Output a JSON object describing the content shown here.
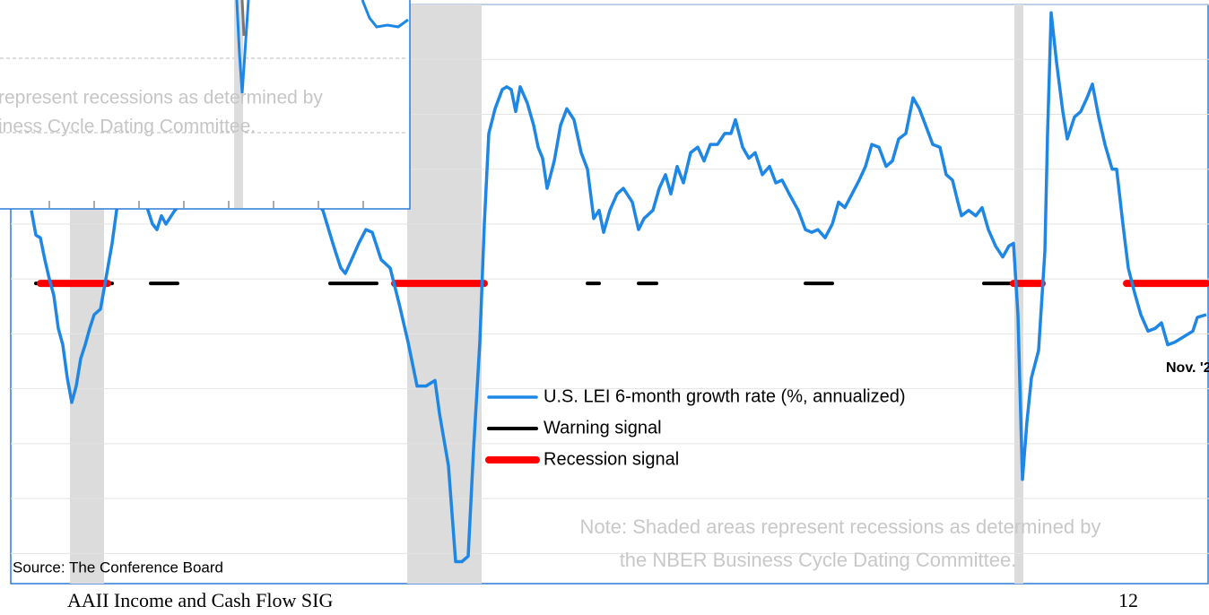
{
  "chart_data": {
    "type": "line",
    "xlim": [
      0,
      1336
    ],
    "ylim": [
      -11.1,
      10
    ],
    "yticks": [
      -10,
      -8,
      -6,
      -4,
      -2,
      0,
      2,
      4,
      6,
      8,
      10
    ],
    "grid": true,
    "series": [
      {
        "name": "U.S. LEI 6-month growth rate (%, annualized)",
        "color": "#1e87e5",
        "x": [
          23,
          28,
          33,
          38,
          43,
          48,
          53,
          58,
          63,
          68,
          73,
          78,
          83,
          88,
          93,
          100,
          106,
          113,
          118,
          136,
          153,
          158,
          163,
          168,
          173,
          183,
          268,
          348,
          360,
          368,
          373,
          380,
          388,
          396,
          403,
          413,
          423,
          433,
          443,
          453,
          463,
          473,
          478,
          488,
          496,
          503,
          510,
          516,
          523,
          528,
          533,
          540,
          548,
          553,
          558,
          563,
          568,
          576,
          583,
          588,
          593,
          598,
          606,
          613,
          620,
          628,
          636,
          643,
          650,
          656,
          661,
          668,
          676,
          683,
          693,
          700,
          706,
          716,
          723,
          730,
          736,
          743,
          750,
          758,
          766,
          773,
          780,
          788,
          796,
          803,
          808,
          816,
          823,
          830,
          838,
          846,
          853,
          860,
          868,
          878,
          886,
          893,
          900,
          908,
          916,
          923,
          930,
          938,
          946,
          953,
          960,
          968,
          976,
          983,
          990,
          998,
          1006,
          1013,
          1020,
          1028,
          1036,
          1043,
          1050,
          1056,
          1060,
          1068,
          1076,
          1083,
          1090,
          1098,
          1106,
          1113,
          1118,
          1123,
          1128,
          1133,
          1138,
          1146,
          1153,
          1156,
          1160,
          1166,
          1173,
          1178,
          1186,
          1193,
          1200,
          1206,
          1213,
          1220,
          1228,
          1233,
          1240,
          1246,
          1253,
          1260,
          1268,
          1276,
          1283,
          1290,
          1298,
          1308,
          1318,
          1323,
          1333
        ],
        "values": [
          2.5,
          1.6,
          1.5,
          0.7,
          0.0,
          -0.6,
          -1.8,
          -2.4,
          -3.6,
          -4.5,
          -3.9,
          -2.9,
          -2.4,
          -1.8,
          -1.3,
          -1.1,
          0.0,
          1.3,
          2.5,
          4.3,
          2.5,
          2.0,
          1.8,
          2.3,
          2.0,
          2.5,
          5.3,
          2.5,
          1.2,
          0.4,
          0.2,
          0.7,
          1.3,
          1.8,
          1.7,
          0.7,
          0.4,
          -0.9,
          -2.3,
          -3.9,
          -3.9,
          -3.7,
          -4.9,
          -6.8,
          -10.3,
          -10.3,
          -10.1,
          -6.2,
          -2.3,
          2.0,
          5.3,
          6.2,
          6.9,
          7.0,
          6.9,
          6.1,
          7.0,
          6.4,
          5.6,
          4.8,
          4.4,
          3.3,
          4.3,
          5.6,
          6.2,
          5.8,
          4.6,
          4.0,
          2.2,
          2.5,
          1.7,
          2.5,
          3.1,
          3.3,
          2.8,
          1.8,
          2.2,
          2.5,
          3.3,
          3.8,
          3.1,
          4.1,
          3.5,
          4.6,
          4.8,
          4.3,
          4.9,
          4.9,
          5.3,
          5.3,
          5.8,
          4.8,
          4.4,
          4.6,
          3.8,
          4.1,
          3.5,
          3.6,
          3.1,
          2.5,
          1.8,
          1.7,
          1.8,
          1.5,
          2.0,
          2.8,
          2.6,
          3.1,
          3.6,
          4.1,
          4.9,
          4.8,
          4.1,
          4.3,
          5.1,
          5.3,
          6.6,
          6.2,
          5.6,
          4.9,
          4.8,
          3.8,
          3.6,
          2.8,
          2.3,
          2.5,
          2.3,
          2.6,
          1.8,
          1.2,
          0.8,
          1.2,
          1.3,
          -1.3,
          -7.3,
          -5.2,
          -3.6,
          -2.6,
          1.0,
          5.3,
          9.7,
          7.9,
          6.1,
          5.1,
          5.9,
          6.1,
          6.6,
          7.1,
          5.9,
          4.9,
          4.0,
          4.0,
          2.0,
          0.4,
          -0.5,
          -1.3,
          -1.9,
          -1.8,
          -1.6,
          -2.4,
          -2.3,
          -2.1,
          -1.9,
          -1.4,
          -1.3
        ]
      },
      {
        "name": "Warning signal",
        "color": "#000000",
        "segments": [
          [
            28,
            113
          ],
          [
            156,
            186
          ],
          [
            356,
            408
          ],
          [
            643,
            656
          ],
          [
            700,
            720
          ],
          [
            886,
            916
          ],
          [
            1085,
            1118
          ]
        ]
      },
      {
        "name": "Recession signal",
        "color": "#ff0000",
        "segments": [
          [
            33,
            108
          ],
          [
            428,
            528
          ],
          [
            1118,
            1150
          ],
          [
            1244,
            1333
          ]
        ]
      }
    ],
    "recessions": [
      [
        66,
        104
      ],
      [
        442,
        525
      ],
      [
        1119,
        1129
      ]
    ],
    "annotations": [
      "Nov. '2",
      "Note: Shaded areas represent recessions as determined by",
      "the NBER Business Cycle Dating Committee."
    ],
    "source": "Source: The Conference Board"
  },
  "inset": {
    "note_lines": [
      "represent recessions as determined by",
      "iness Cycle Dating Committee."
    ]
  },
  "footer": {
    "left": "AAII Income and Cash Flow SIG",
    "right": "12"
  }
}
